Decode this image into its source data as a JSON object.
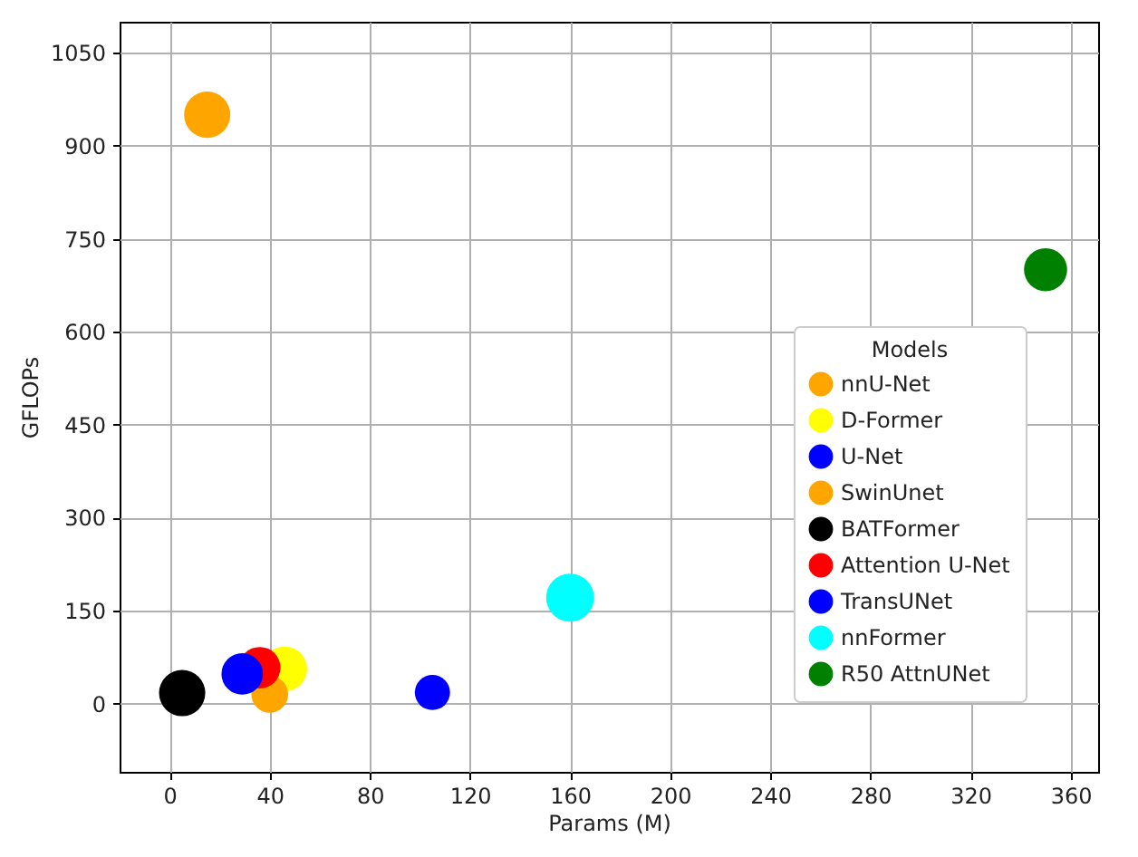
{
  "chart_data": {
    "type": "bubble",
    "xlabel": "Params (M)",
    "ylabel": "GFLOPs",
    "legend_title": "Models",
    "xlim": [
      -20,
      371
    ],
    "xticks": [
      0,
      40,
      80,
      120,
      160,
      200,
      240,
      280,
      320,
      360
    ],
    "ylim": [
      -110,
      1100
    ],
    "yticks": [
      0,
      150,
      300,
      450,
      600,
      750,
      900,
      1050
    ],
    "grid": true,
    "legend": "right",
    "marker": "circle",
    "series": [
      {
        "name": "nnU-Net",
        "color": "#ffa500",
        "x": [
          15
        ],
        "values": [
          950
        ],
        "sizes": [
          0.93
        ]
      },
      {
        "name": "D-Former",
        "color": "#ffff00",
        "x": [
          46
        ],
        "values": [
          56
        ],
        "sizes": [
          0.87
        ]
      },
      {
        "name": "U-Net",
        "color": "#0000ff",
        "x": [
          105
        ],
        "values": [
          18
        ],
        "sizes": [
          0.54
        ]
      },
      {
        "name": "SwinUnet",
        "color": "#ffa500",
        "x": [
          40
        ],
        "values": [
          15
        ],
        "sizes": [
          0.59
        ]
      },
      {
        "name": "BATFormer",
        "color": "#000000",
        "x": [
          5
        ],
        "values": [
          17
        ],
        "sizes": [
          0.93
        ]
      },
      {
        "name": "Attention U-Net",
        "color": "#ff0000",
        "x": [
          36
        ],
        "values": [
          58
        ],
        "sizes": [
          0.75
        ]
      },
      {
        "name": "TransUNet",
        "color": "#0000ff",
        "x": [
          29
        ],
        "values": [
          48
        ],
        "sizes": [
          0.75
        ]
      },
      {
        "name": "nnFormer",
        "color": "#00ffff",
        "x": [
          160
        ],
        "values": [
          171
        ],
        "sizes": [
          1
        ]
      },
      {
        "name": "R50 AttnUNet",
        "color": "#008000",
        "x": [
          350
        ],
        "values": [
          700
        ],
        "sizes": [
          0.81
        ]
      }
    ]
  }
}
